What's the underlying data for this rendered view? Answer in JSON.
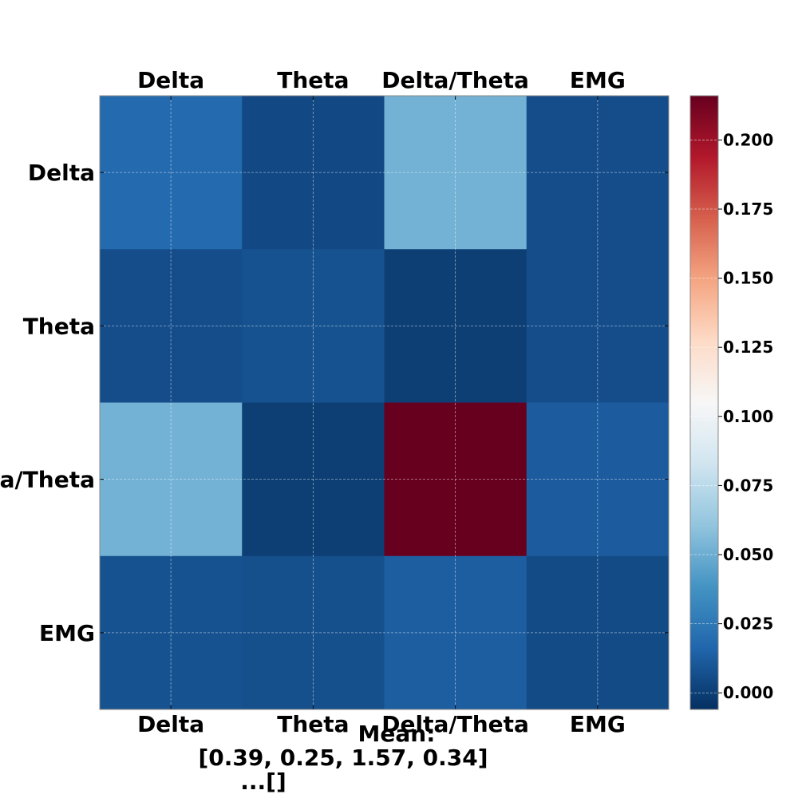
{
  "chart_data": {
    "type": "heatmap",
    "title": "",
    "x_categories": [
      "Delta",
      "Theta",
      "Delta/Theta",
      "EMG"
    ],
    "y_categories": [
      "Delta",
      "Theta",
      "Delta/Theta",
      "EMG"
    ],
    "values": [
      [
        0.018,
        0.004,
        0.052,
        0.006
      ],
      [
        0.006,
        0.008,
        0.0,
        0.006
      ],
      [
        0.052,
        0.0,
        0.216,
        0.012
      ],
      [
        0.008,
        0.007,
        0.013,
        0.005
      ]
    ],
    "colorscale": "RdBu_r",
    "color_range": [
      -0.006,
      0.216
    ],
    "colorbar_ticks": [
      0.0,
      0.025,
      0.05,
      0.075,
      0.1,
      0.125,
      0.15,
      0.175,
      0.2
    ],
    "colorbar_tick_labels": [
      "0.000",
      "0.025",
      "0.050",
      "0.075",
      "0.100",
      "0.125",
      "0.150",
      "0.175",
      "0.200"
    ],
    "grid": true,
    "caption_lines": [
      "Mean:",
      "[0.39, 0.25, 1.57, 0.34]",
      "...[]"
    ]
  }
}
